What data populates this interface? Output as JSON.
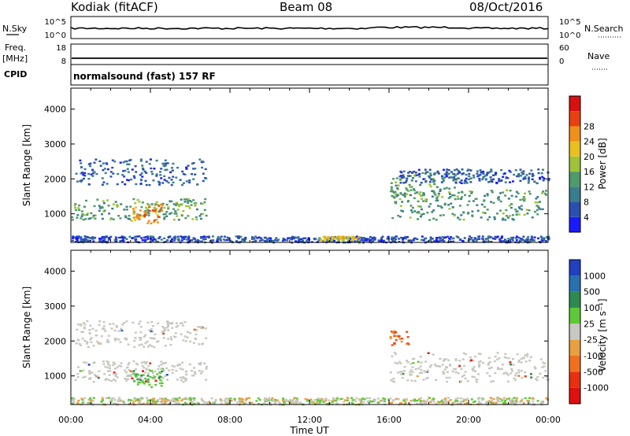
{
  "header": {
    "station": "Kodiak (fitACF)",
    "beam": "Beam 08",
    "date": "08/Oct/2016"
  },
  "summary_panels": {
    "left_labels": {
      "nsky": "N.Sky",
      "freq": "Freq.",
      "freq_unit": "[MHz]",
      "cpid": "CPID"
    },
    "right_labels": {
      "nsearch": "N.Search",
      "nave": "Nave"
    },
    "noise_ticks_left": [
      "10^5",
      "10^0"
    ],
    "noise_ticks_right": [
      "10^5",
      "10^0"
    ],
    "freq_ticks": [
      "18",
      "8"
    ],
    "nave_ticks": [
      "60",
      "0"
    ],
    "cpid_text": "normalsound (fast) 157 RF"
  },
  "chart_data": [
    {
      "type": "heatmap",
      "panel": "power",
      "ylabel": "Slant Range [km]",
      "ylim": [
        180,
        4600
      ],
      "yticks": [
        "1000",
        "2000",
        "3000",
        "4000"
      ],
      "xlim": [
        0,
        24
      ],
      "colorbar": {
        "label": "Power [dB]",
        "ticks": [
          "4",
          "8",
          "12",
          "16",
          "20",
          "24",
          "28"
        ],
        "colors": [
          "#1a1aff",
          "#2b4fb0",
          "#3a7d8c",
          "#4f9a6a",
          "#9fc23a",
          "#e8c020",
          "#f0901a",
          "#e84010",
          "#d81010"
        ]
      },
      "regions": [
        {
          "t": [
            0,
            6.8
          ],
          "r": [
            850,
            1450
          ],
          "level": 14
        },
        {
          "t": [
            3.0,
            4.6
          ],
          "r": [
            750,
            1300
          ],
          "level": 26
        },
        {
          "t": [
            0.2,
            6.8
          ],
          "r": [
            1850,
            2600
          ],
          "level": 7
        },
        {
          "t": [
            16.0,
            24
          ],
          "r": [
            850,
            1700
          ],
          "level": 13
        },
        {
          "t": [
            16.0,
            19.5
          ],
          "r": [
            1500,
            2200
          ],
          "level": 14
        },
        {
          "t": [
            16.5,
            24
          ],
          "r": [
            1900,
            2300
          ],
          "level": 7
        },
        {
          "t": [
            0,
            24
          ],
          "r": [
            200,
            380
          ],
          "level": 6
        },
        {
          "t": [
            12.5,
            14.5
          ],
          "r": [
            260,
            380
          ],
          "level": 22
        }
      ]
    },
    {
      "type": "heatmap",
      "panel": "velocity",
      "ylabel": "Slant Range [km]",
      "ylim": [
        180,
        4600
      ],
      "yticks": [
        "1000",
        "2000",
        "3000",
        "4000"
      ],
      "xlim": [
        0,
        24
      ],
      "colorbar": {
        "label": "Velocity [m s⁻¹]",
        "ticks": [
          "1000",
          "500",
          "100",
          "25",
          "-25",
          "-100",
          "-500",
          "-1000"
        ],
        "colors": [
          "#2040c0",
          "#2a6fb0",
          "#2e8a50",
          "#5ec83a",
          "#c8c8c0",
          "#e8a040",
          "#f07020",
          "#e83010",
          "#e01010"
        ]
      },
      "regions": [
        {
          "t": [
            0,
            6.8
          ],
          "r": [
            850,
            1450
          ],
          "class": "ground"
        },
        {
          "t": [
            0.2,
            6.8
          ],
          "r": [
            1850,
            2600
          ],
          "class": "ground"
        },
        {
          "t": [
            3.0,
            4.6
          ],
          "r": [
            700,
            1200
          ],
          "class": "positive"
        },
        {
          "t": [
            16.0,
            24
          ],
          "r": [
            850,
            1700
          ],
          "class": "ground"
        },
        {
          "t": [
            16.0,
            17.0
          ],
          "r": [
            1900,
            2300
          ],
          "class": "negative"
        },
        {
          "t": [
            0,
            24
          ],
          "r": [
            200,
            400
          ],
          "class": "mixed"
        }
      ]
    }
  ],
  "xaxis": {
    "ticks": [
      "00:00",
      "04:00",
      "08:00",
      "12:00",
      "16:00",
      "20:00",
      "00:00"
    ],
    "label": "Time UT"
  }
}
